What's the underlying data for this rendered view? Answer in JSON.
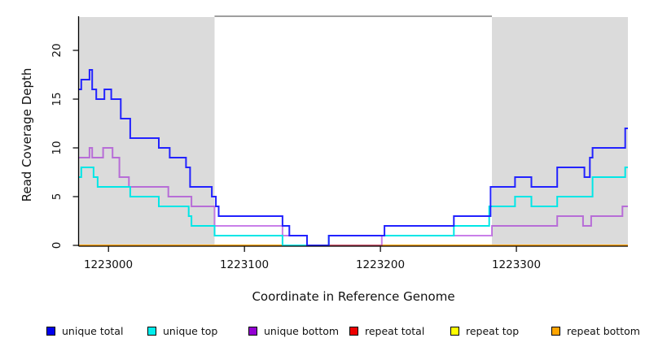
{
  "chart_data": {
    "type": "line",
    "step": true,
    "title": "",
    "xlabel": "Coordinate in Reference Genome",
    "ylabel": "Read Coverage Depth",
    "xlim": [
      1222978,
      1223382
    ],
    "ylim": [
      0,
      23.5
    ],
    "grid": false,
    "legend_position": "bottom",
    "x_ticks": [
      1223000,
      1223100,
      1223200,
      1223300
    ],
    "x_tick_labels": [
      "1223000",
      "1223100",
      "1223200",
      "1223300"
    ],
    "y_ticks": [
      0,
      5,
      10,
      15,
      20
    ],
    "y_tick_labels": [
      "0",
      "5",
      "10",
      "15",
      "20"
    ],
    "shaded_region_color": "#dbdbdb",
    "shaded_regions": [
      {
        "from": 1222978,
        "to": 1223078
      },
      {
        "from": 1223282,
        "to": 1223382
      }
    ],
    "series": [
      {
        "name": "unique total",
        "color": "#2222ff",
        "legend_color": "#0000ee",
        "points": [
          [
            1222978,
            16
          ],
          [
            1222980,
            17
          ],
          [
            1222986,
            18
          ],
          [
            1222988,
            16
          ],
          [
            1222991,
            15
          ],
          [
            1222997,
            16
          ],
          [
            1223002,
            15
          ],
          [
            1223009,
            13
          ],
          [
            1223016,
            11
          ],
          [
            1223037,
            10
          ],
          [
            1223045,
            9
          ],
          [
            1223057,
            8
          ],
          [
            1223060,
            6
          ],
          [
            1223076,
            5
          ],
          [
            1223079,
            4
          ],
          [
            1223081,
            3
          ],
          [
            1223128,
            2
          ],
          [
            1223133,
            1
          ],
          [
            1223146,
            0
          ],
          [
            1223162,
            1
          ],
          [
            1223203,
            2
          ],
          [
            1223254,
            3
          ],
          [
            1223281,
            6
          ],
          [
            1223299,
            7
          ],
          [
            1223311,
            6
          ],
          [
            1223330,
            8
          ],
          [
            1223350,
            7
          ],
          [
            1223354,
            9
          ],
          [
            1223356,
            10
          ],
          [
            1223380,
            12
          ],
          [
            1223382,
            12
          ]
        ]
      },
      {
        "name": "unique top",
        "color": "#00e6e6",
        "legend_color": "#00eeee",
        "points": [
          [
            1222978,
            7
          ],
          [
            1222980,
            8
          ],
          [
            1222989,
            7
          ],
          [
            1222992,
            6
          ],
          [
            1223016,
            5
          ],
          [
            1223037,
            4
          ],
          [
            1223059,
            3
          ],
          [
            1223061,
            2
          ],
          [
            1223078,
            1
          ],
          [
            1223128,
            0
          ],
          [
            1223162,
            1
          ],
          [
            1223254,
            2
          ],
          [
            1223280,
            4
          ],
          [
            1223299,
            5
          ],
          [
            1223311,
            4
          ],
          [
            1223330,
            5
          ],
          [
            1223356,
            7
          ],
          [
            1223380,
            8
          ],
          [
            1223382,
            8
          ]
        ]
      },
      {
        "name": "unique bottom",
        "color": "rgba(148,0,211,0.5)",
        "legend_color": "#9400d3",
        "points": [
          [
            1222978,
            9
          ],
          [
            1222986,
            10
          ],
          [
            1222988,
            9
          ],
          [
            1222996,
            10
          ],
          [
            1223003,
            9
          ],
          [
            1223008,
            7
          ],
          [
            1223015,
            6
          ],
          [
            1223044,
            5
          ],
          [
            1223061,
            4
          ],
          [
            1223078,
            2
          ],
          [
            1223128,
            1
          ],
          [
            1223146,
            0
          ],
          [
            1223201,
            1
          ],
          [
            1223282,
            2
          ],
          [
            1223330,
            3
          ],
          [
            1223349,
            2
          ],
          [
            1223355,
            3
          ],
          [
            1223378,
            4
          ],
          [
            1223382,
            4
          ]
        ]
      },
      {
        "name": "repeat total",
        "color": "#dd0000",
        "legend_color": "#ee0000",
        "points": [
          [
            1222978,
            0
          ],
          [
            1223382,
            0
          ]
        ]
      },
      {
        "name": "repeat top",
        "color": "#ffff00",
        "legend_color": "#ffff00",
        "points": [
          [
            1222978,
            0
          ],
          [
            1223382,
            0
          ]
        ]
      },
      {
        "name": "repeat bottom",
        "color": "#ffa500",
        "legend_color": "#ffa500",
        "points": [
          [
            1222978,
            0
          ],
          [
            1223382,
            0
          ]
        ]
      }
    ]
  },
  "layout_hints": {
    "draw_order": [
      "repeat total",
      "repeat top",
      "repeat bottom",
      "unique bottom",
      "unique top",
      "unique total"
    ]
  }
}
